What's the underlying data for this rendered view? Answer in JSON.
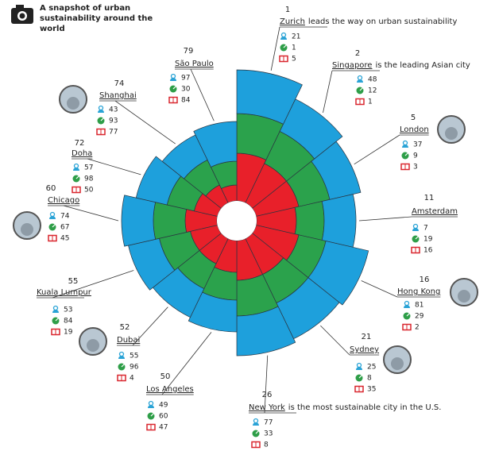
{
  "chart_data": {
    "type": "radial_stacked_bar",
    "title": "A snapshot of urban sustainability around the world",
    "categories": [
      "Zurich",
      "Singapore",
      "London",
      "Amsterdam",
      "Hong Kong",
      "Sydney",
      "New York",
      "Los Angeles",
      "Dubai",
      "Kuala Lumpur",
      "Chicago",
      "Doha",
      "Shanghai",
      "São Paulo"
    ],
    "ranks": [
      1,
      2,
      5,
      11,
      16,
      21,
      26,
      50,
      52,
      55,
      60,
      72,
      74,
      79
    ],
    "notes": [
      "leads the way on urban sustainability",
      "is the leading Asian city",
      null,
      null,
      null,
      null,
      "is the most sustainable city in the U.S.",
      null,
      null,
      null,
      null,
      null,
      null,
      null
    ],
    "metrics": [
      {
        "color": "#2aa3d6",
        "values": [
          21,
          48,
          37,
          7,
          81,
          25,
          77,
          49,
          55,
          53,
          74,
          57,
          43,
          97
        ]
      },
      {
        "color": "#2e9e48",
        "values": [
          1,
          12,
          9,
          19,
          29,
          8,
          33,
          60,
          96,
          84,
          67,
          98,
          93,
          30
        ]
      },
      {
        "color": "#d9262e",
        "values": [
          5,
          1,
          3,
          16,
          2,
          35,
          8,
          47,
          4,
          19,
          45,
          50,
          77,
          84
        ]
      }
    ],
    "series": [
      {
        "color": "#e8202a",
        "values": [
          60,
          55,
          55,
          50,
          55,
          50,
          50,
          40,
          35,
          35,
          40,
          30,
          25,
          20
        ]
      },
      {
        "color": "#2ba24c",
        "values": [
          50,
          45,
          40,
          35,
          35,
          40,
          45,
          35,
          35,
          40,
          40,
          35,
          35,
          30
        ]
      },
      {
        "color": "#1ea0dc",
        "values": [
          55,
          45,
          40,
          40,
          55,
          50,
          50,
          40,
          40,
          40,
          40,
          40,
          35,
          50
        ]
      }
    ],
    "rlim": [
      0,
      170
    ]
  }
}
